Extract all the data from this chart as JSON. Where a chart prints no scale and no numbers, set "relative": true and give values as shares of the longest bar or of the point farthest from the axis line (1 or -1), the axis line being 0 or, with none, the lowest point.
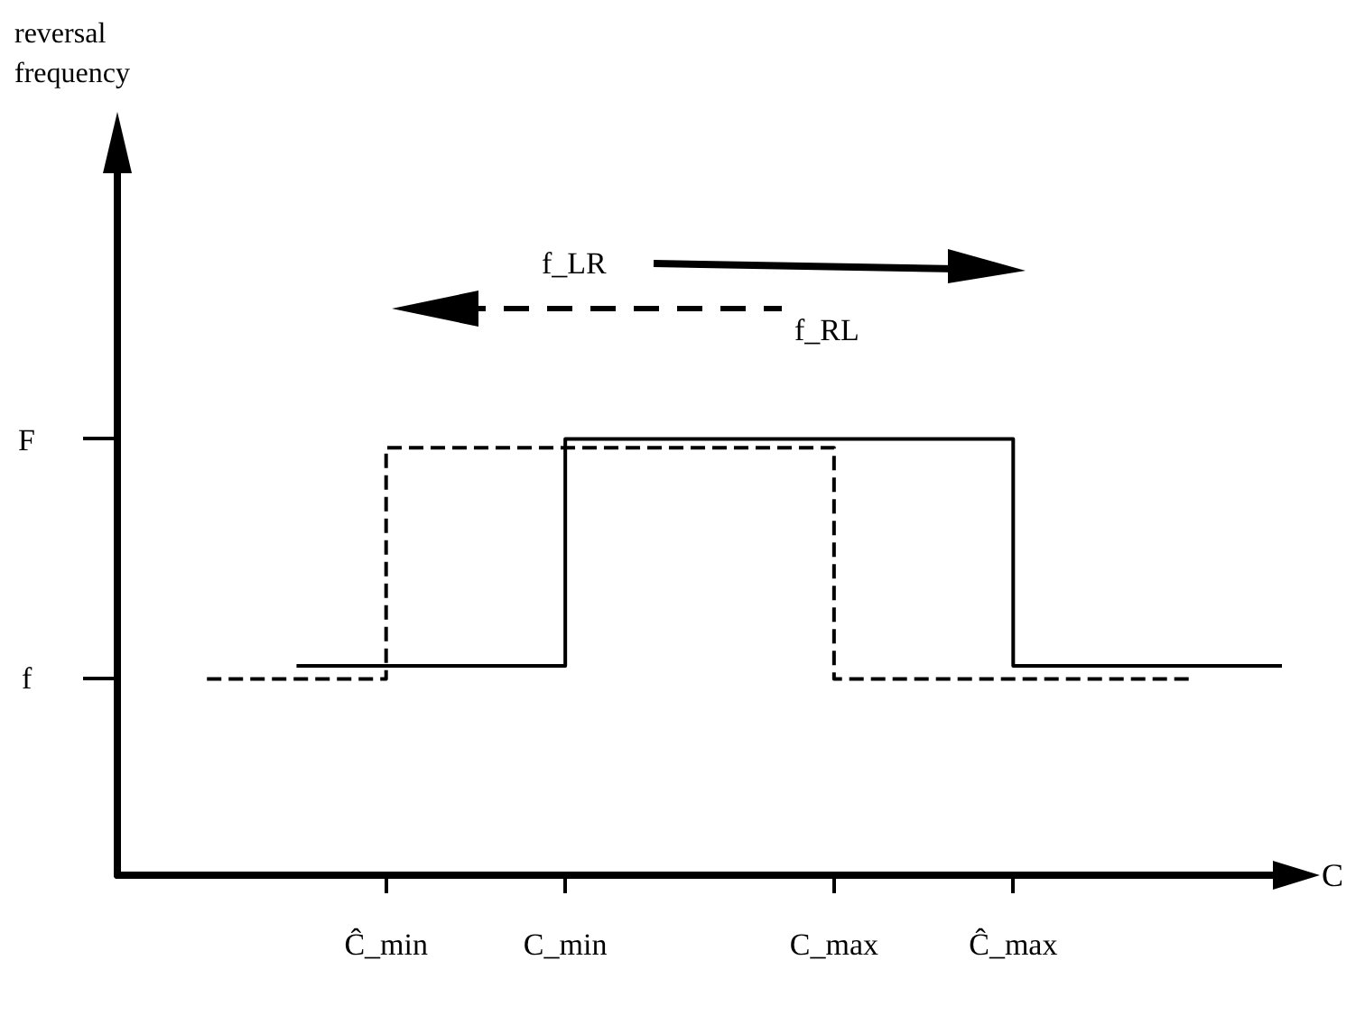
{
  "chart_data": {
    "type": "step",
    "relative": true,
    "xlabel": "C",
    "annotations": [
      "f_LR",
      "f_RL",
      "F",
      "f",
      "reversal\nfrequency"
    ],
    "categories": [
      null,
      null,
      null,
      "Ĉ_min",
      null,
      "C_min",
      null,
      null,
      "C_max",
      null,
      "Ĉ_max",
      null,
      null,
      null
    ],
    "series": [
      {
        "color": "#000000",
        "line_style": "solid",
        "values": [
          null,
          null,
          0.48,
          0.48,
          0.48,
          1.0,
          1.0,
          1.0,
          1.0,
          1.0,
          0.48,
          0.48,
          0.48,
          0.48
        ]
      },
      {
        "color": "#000000",
        "line_style": "dashed",
        "values": [
          null,
          0.45,
          0.45,
          0.98,
          0.98,
          0.98,
          0.98,
          0.98,
          0.45,
          0.45,
          0.45,
          0.45,
          0.45,
          null
        ]
      }
    ],
    "marker": "none"
  }
}
